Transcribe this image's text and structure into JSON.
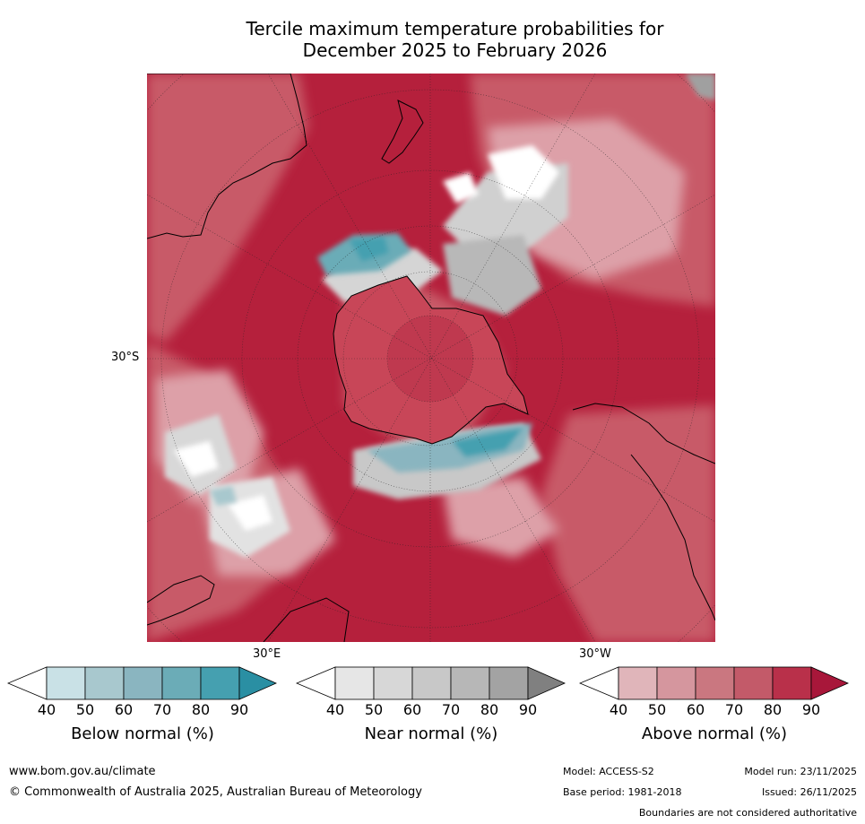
{
  "title": {
    "line1": "Tercile maximum temperature probabilities for",
    "line2": "December 2025 to February 2026"
  },
  "map": {
    "projection": "south-polar-stereographic",
    "graticule_labels": {
      "lat_30s": "30°S",
      "lon_30e": "30°E",
      "lon_30w": "30°W"
    },
    "colors": {
      "above_dominant": "#b5203c",
      "above_mid": "#c85a68",
      "above_light": "#dda0a8",
      "near": "#c8c8c8",
      "below": "#3f9aaa",
      "land_border": "#000000",
      "no_data": "#a0a0a0"
    }
  },
  "legends": [
    {
      "label": "Below normal (%)",
      "ticks": [
        "40",
        "50",
        "60",
        "70",
        "80",
        "90"
      ],
      "colors": [
        "#ffffff",
        "#c9e1e6",
        "#a8c8ce",
        "#8ab5c0",
        "#6bacb7",
        "#45a0b0",
        "#2a8fa3"
      ]
    },
    {
      "label": "Near normal (%)",
      "ticks": [
        "40",
        "50",
        "60",
        "70",
        "80",
        "90"
      ],
      "colors": [
        "#ffffff",
        "#e6e6e6",
        "#d7d7d7",
        "#c8c8c8",
        "#b7b7b7",
        "#a3a3a3",
        "#808080"
      ]
    },
    {
      "label": "Above normal (%)",
      "ticks": [
        "40",
        "50",
        "60",
        "70",
        "80",
        "90"
      ],
      "colors": [
        "#ffffff",
        "#e0b5ba",
        "#d5969e",
        "#ca7780",
        "#c35a69",
        "#b9304a",
        "#a8173a"
      ]
    }
  ],
  "footer": {
    "website": "www.bom.gov.au/climate",
    "copyright": "© Commonwealth of Australia 2025, Australian Bureau of Meteorology",
    "model": "Model: ACCESS-S2",
    "base_period": "Base period: 1981-2018",
    "model_run": "Model run: 23/11/2025",
    "issued": "Issued: 26/11/2025",
    "disclaimer": "Boundaries are not considered authoritative"
  }
}
